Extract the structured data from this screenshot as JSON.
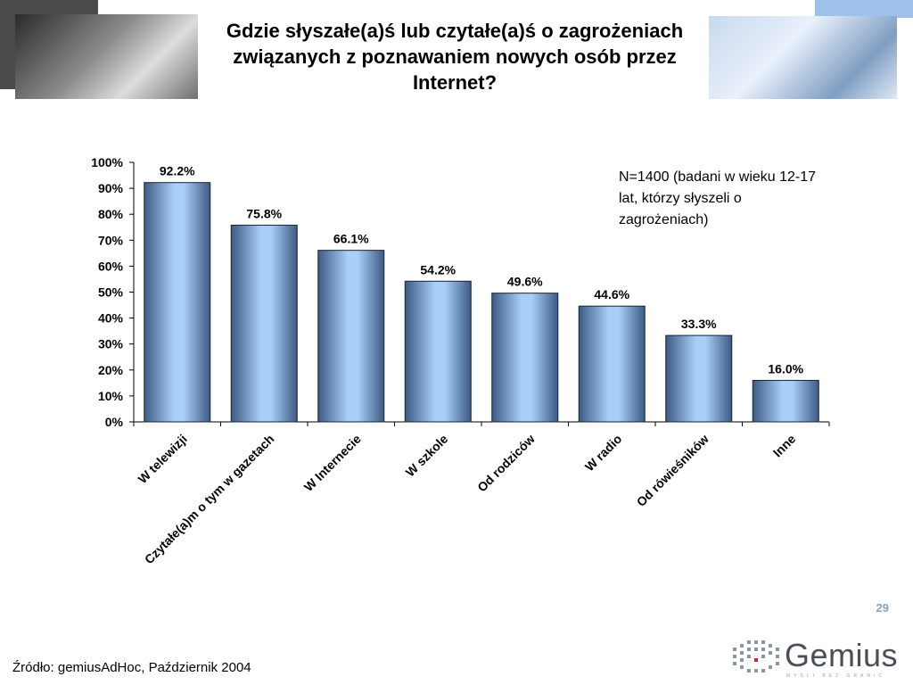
{
  "slide": {
    "title": "Gdzie słyszałe(a)ś lub czytałe(a)ś o zagrożeniach związanych z poznawaniem nowych osób przez Internet?",
    "note": "N=1400 (badani w wieku 12-17 lat, którzy słyszeli o zagrożeniach)",
    "page_number": "29",
    "source": "Źródło: gemiusAdHoc, Październik 2004",
    "logo_text": "Gemius",
    "logo_tagline": "MYŚLI BEZ GRANIC"
  },
  "colors": {
    "bar_light": "#a8cff8",
    "bar_dark": "#3d5a82",
    "title": "#000000",
    "page_number": "#8aa0b8"
  },
  "chart_data": {
    "type": "bar",
    "title": "",
    "xlabel": "",
    "ylabel": "",
    "categories": [
      "W telewizji",
      "Czytałe(a)m o tym w gazetach",
      "W Internecie",
      "W szkole",
      "Od rodziców",
      "W radio",
      "Od rówieśników",
      "Inne"
    ],
    "values": [
      92.2,
      75.8,
      66.1,
      54.2,
      49.6,
      44.6,
      33.3,
      16.0
    ],
    "value_labels": [
      "92.2%",
      "75.8%",
      "66.1%",
      "54.2%",
      "49.6%",
      "44.6%",
      "33.3%",
      "16.0%"
    ],
    "ylim": [
      0,
      100
    ],
    "y_ticks": [
      0,
      10,
      20,
      30,
      40,
      50,
      60,
      70,
      80,
      90,
      100
    ],
    "y_tick_labels": [
      "0%",
      "10%",
      "20%",
      "30%",
      "40%",
      "50%",
      "60%",
      "70%",
      "80%",
      "90%",
      "100%"
    ],
    "grid": false,
    "legend": "none"
  }
}
